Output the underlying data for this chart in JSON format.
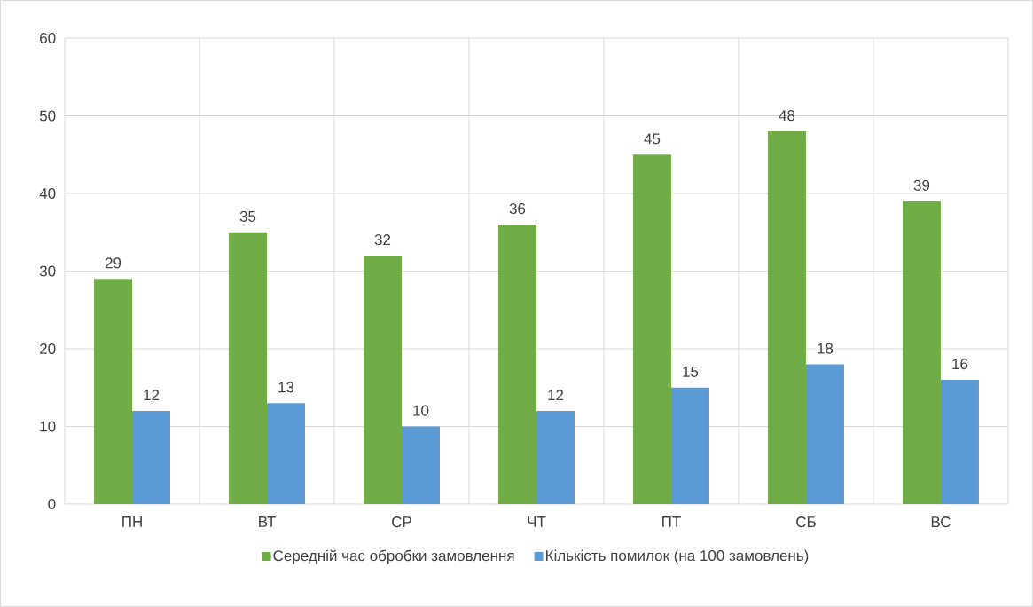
{
  "chart_data": {
    "type": "bar",
    "categories": [
      "ПН",
      "ВТ",
      "СР",
      "ЧТ",
      "ПТ",
      "СБ",
      "ВС"
    ],
    "series": [
      {
        "name": "Середній час обробки замовлення",
        "color": "#70ad47",
        "values": [
          29,
          35,
          32,
          36,
          45,
          48,
          39
        ]
      },
      {
        "name": "Кількість помилок (на 100 замовлень)",
        "color": "#5b9bd5",
        "values": [
          12,
          13,
          10,
          12,
          15,
          18,
          16
        ]
      }
    ],
    "ylim": [
      0,
      60
    ],
    "yticks": [
      0,
      10,
      20,
      30,
      40,
      50,
      60
    ],
    "grid": true,
    "legend": "bottom",
    "data_labels": true
  }
}
